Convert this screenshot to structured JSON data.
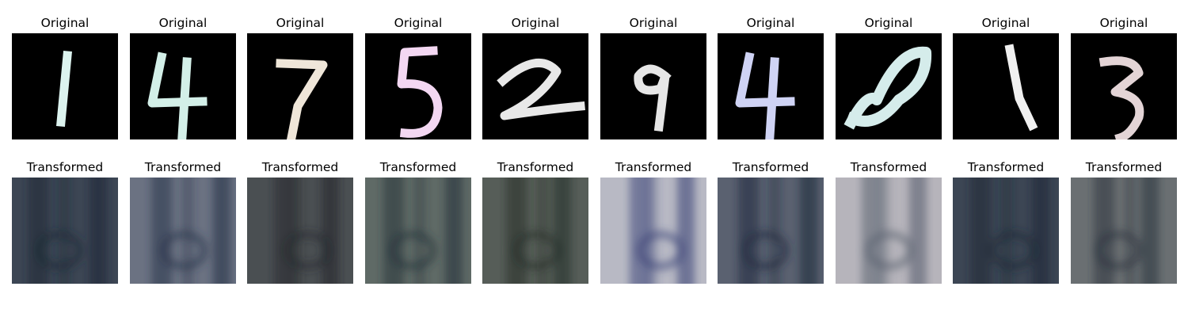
{
  "rows": {
    "top": {
      "title": "Original",
      "panels": [
        {
          "digit": "1",
          "color": "#dcf3ef"
        },
        {
          "digit": "4",
          "color": "#d3efe8"
        },
        {
          "digit": "7",
          "color": "#efe6d9"
        },
        {
          "digit": "5",
          "color": "#f3d7f2"
        },
        {
          "digit": "2",
          "color": "#e8e8e8"
        },
        {
          "digit": "9",
          "color": "#e6e6e6"
        },
        {
          "digit": "4",
          "color": "#cfd3f4"
        },
        {
          "digit": "8",
          "color": "#d5eceb"
        },
        {
          "digit": "1",
          "color": "#f0f0f0"
        },
        {
          "digit": "3",
          "color": "#e3d4d6"
        }
      ]
    },
    "bottom": {
      "title": "Transformed",
      "panels": [
        {
          "bg": "#3c4654",
          "accent": "#1d2a36"
        },
        {
          "bg": "#6b7282",
          "accent": "#2a344a"
        },
        {
          "bg": "#4a4f52",
          "accent": "#242a2e"
        },
        {
          "bg": "#5f6a66",
          "accent": "#25333a"
        },
        {
          "bg": "#565d58",
          "accent": "#28322c"
        },
        {
          "bg": "#b8b9c4",
          "accent": "#3a4476"
        },
        {
          "bg": "#5a6170",
          "accent": "#222c3e"
        },
        {
          "bg": "#b6b4bb",
          "accent": "#5a6070"
        },
        {
          "bg": "#3c4654",
          "accent": "#1d2a36"
        },
        {
          "bg": "#6a6f72",
          "accent": "#2d3540"
        }
      ]
    }
  }
}
